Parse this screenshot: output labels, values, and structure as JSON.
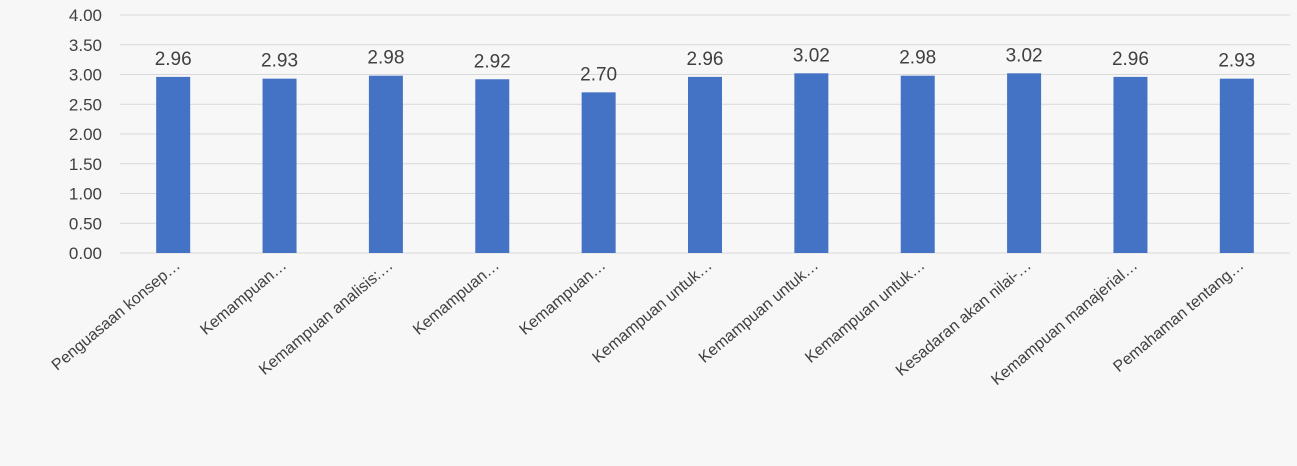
{
  "chart_data": {
    "type": "bar",
    "title": "",
    "xlabel": "",
    "ylabel": "",
    "ylim": [
      0,
      4
    ],
    "yticks": [
      "0.00",
      "0.50",
      "1.00",
      "1.50",
      "2.00",
      "2.50",
      "3.00",
      "3.50",
      "4.00"
    ],
    "ytick_values": [
      0,
      0.5,
      1,
      1.5,
      2,
      2.5,
      3,
      3.5,
      4
    ],
    "grid": true,
    "legend": "none",
    "bar_color": "#4472c4",
    "categories": [
      "Penguasaan konsep…",
      "Kemampuan…",
      "Kemampuan analisis:…",
      "Kemampuan…",
      "Kemampuan…",
      "Kemampuan untuk…",
      "Kemampuan untuk…",
      "Kemampuan untuk…",
      "Kesadaran akan nilai-…",
      "Kemampuan manajerial…",
      "Pemahaman tentang…"
    ],
    "values": [
      2.96,
      2.93,
      2.98,
      2.92,
      2.7,
      2.96,
      3.02,
      2.98,
      3.02,
      2.96,
      2.93
    ],
    "value_labels": [
      "2.96",
      "2.93",
      "2.98",
      "2.92",
      "2.70",
      "2.96",
      "3.02",
      "2.98",
      "3.02",
      "2.96",
      "2.93"
    ]
  }
}
